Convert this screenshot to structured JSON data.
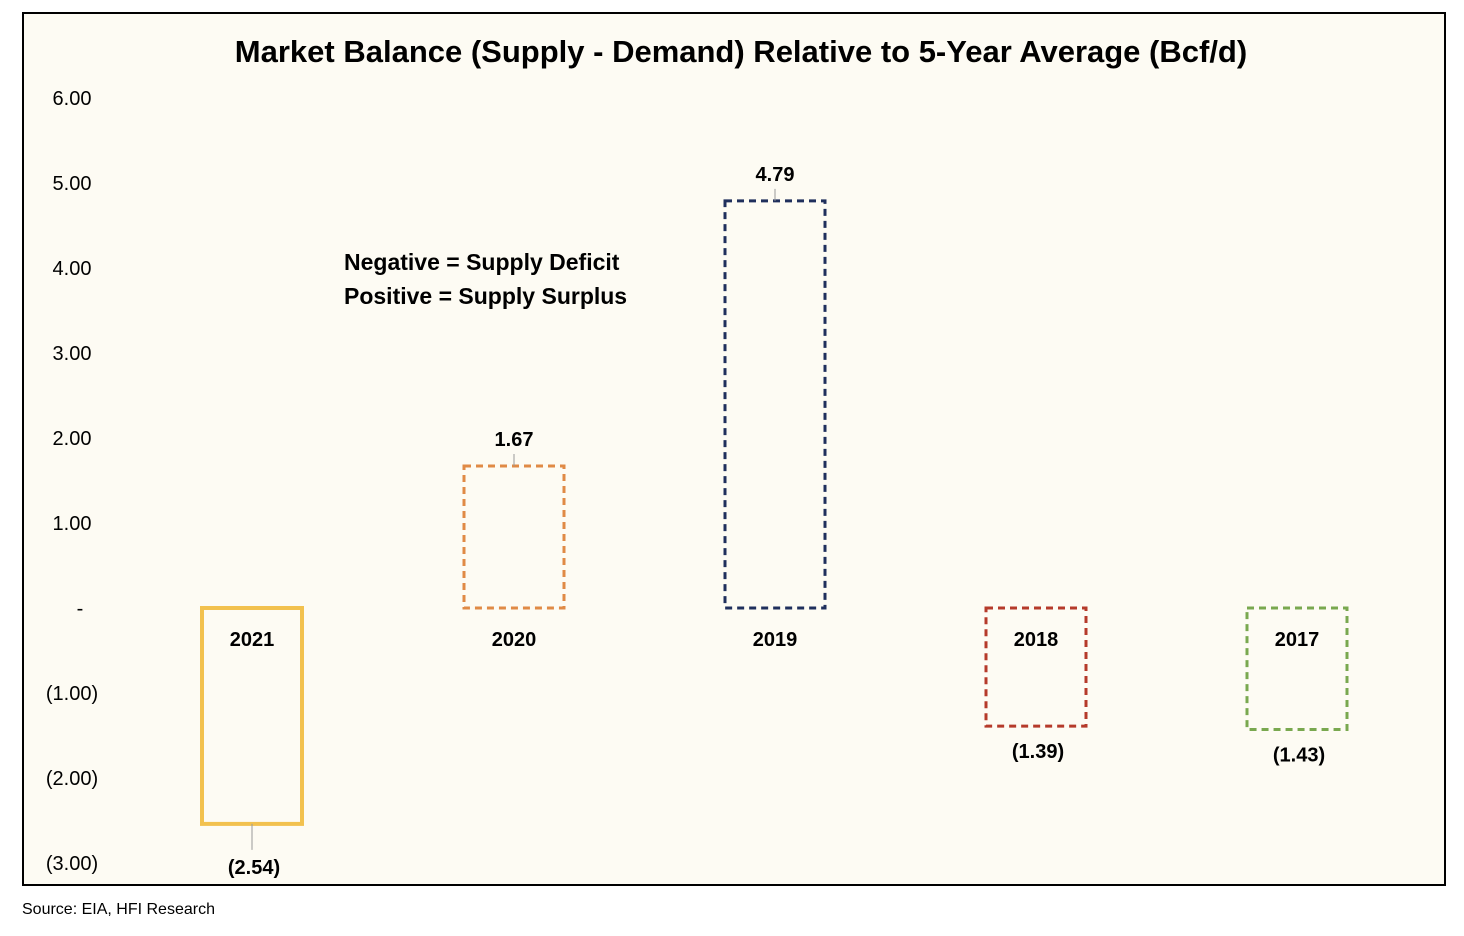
{
  "chart_data": {
    "type": "bar",
    "title": "Market Balance (Supply - Demand) Relative to 5-Year Average (Bcf/d)",
    "xlabel": "",
    "ylabel": "",
    "ylim": [
      -3,
      6
    ],
    "yticks": [
      6,
      5,
      4,
      3,
      2,
      1,
      0,
      -1,
      -2,
      -3
    ],
    "ytick_labels": [
      "6.00",
      "5.00",
      "4.00",
      "3.00",
      "2.00",
      "1.00",
      "-",
      "(1.00)",
      "(2.00)",
      "(3.00)"
    ],
    "grid": false,
    "categories": [
      "2021",
      "2020",
      "2019",
      "2018",
      "2017"
    ],
    "values": [
      -2.54,
      1.67,
      4.79,
      -1.39,
      -1.43
    ],
    "value_labels": [
      "(2.54)",
      "1.67",
      "4.79",
      "(1.39)",
      "(1.43)"
    ],
    "bar_colors": [
      "#f2c14e",
      "#e08a45",
      "#1f2f5c",
      "#b53a2a",
      "#79a84f"
    ],
    "bar_styles": [
      "solid",
      "dashed",
      "dashed",
      "dashed",
      "dashed"
    ],
    "annotation": [
      "Negative = Supply Deficit",
      "Positive = Supply Surplus"
    ]
  },
  "source": "Source: EIA, HFI Research"
}
